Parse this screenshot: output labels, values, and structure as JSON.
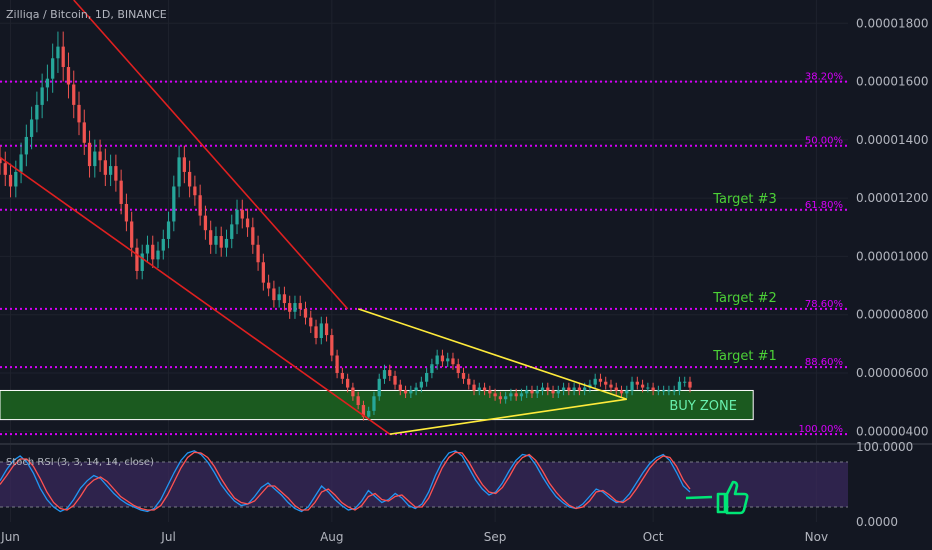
{
  "symbol_title": "Zilliqa / Bitcoin, 1D, BINANCE",
  "colors": {
    "background": "#131722",
    "grid": "#1e222d",
    "axis_text": "#b2b5be",
    "up_candle": "#26a69a",
    "down_candle": "#ef5350",
    "channel_line": "#e02020",
    "triangle_line": "#ffeb3b",
    "fib_line": "#d500f9",
    "target_text": "#4cd137",
    "buy_zone_fill": "#1b5e20",
    "buy_zone_border": "#ffffff",
    "buy_zone_text": "#69f0ae",
    "stoch_k": "#2196f3",
    "stoch_d": "#ff5252",
    "stoch_band": "#3b2a5e"
  },
  "chart_data": [
    {
      "type": "candlestick",
      "title": "Zilliqa / Bitcoin, 1D, BINANCE",
      "x_axis": {
        "tick_labels": [
          "Jun",
          "Jul",
          "Aug",
          "Sep",
          "Oct",
          "Nov"
        ],
        "tick_dates": [
          "2019-06-01",
          "2019-07-01",
          "2019-08-01",
          "2019-09-01",
          "2019-10-01",
          "2019-11-01"
        ],
        "range": [
          "2019-05-30",
          "2019-11-07"
        ]
      },
      "y_axis": {
        "tick_labels": [
          "0.00001800",
          "0.00001600",
          "0.00001400",
          "0.00001200",
          "0.00001000",
          "0.00000800",
          "0.00000600",
          "0.00000400"
        ],
        "ticks": [
          1.8e-05,
          1.6e-05,
          1.4e-05,
          1.2e-05,
          1e-05,
          8e-06,
          6e-06,
          4e-06
        ],
        "range": [
          3.7e-06,
          1.88e-05
        ]
      },
      "grid": true,
      "start_date": "2019-05-30",
      "end_date": "2019-10-05",
      "closes": [
        1.32e-05,
        1.28e-05,
        1.24e-05,
        1.29e-05,
        1.35e-05,
        1.41e-05,
        1.47e-05,
        1.52e-05,
        1.58e-05,
        1.61e-05,
        1.68e-05,
        1.72e-05,
        1.65e-05,
        1.59e-05,
        1.52e-05,
        1.46e-05,
        1.39e-05,
        1.31e-05,
        1.36e-05,
        1.33e-05,
        1.28e-05,
        1.31e-05,
        1.26e-05,
        1.18e-05,
        1.12e-05,
        1.03e-05,
        9.5e-06,
        1.01e-05,
        1.04e-05,
        9.9e-06,
        1.02e-05,
        1.06e-05,
        1.12e-05,
        1.24e-05,
        1.34e-05,
        1.29e-05,
        1.24e-05,
        1.21e-05,
        1.14e-05,
        1.09e-05,
        1.04e-05,
        1.07e-05,
        1.03e-05,
        1.06e-05,
        1.11e-05,
        1.16e-05,
        1.13e-05,
        1.1e-05,
        1.04e-05,
        9.8e-06,
        9.1e-06,
        8.9e-06,
        8.5e-06,
        8.7e-06,
        8.4e-06,
        8.1e-06,
        8.4e-06,
        8.2e-06,
        7.9e-06,
        7.6e-06,
        7.2e-06,
        7.7e-06,
        7.3e-06,
        6.6e-06,
        6e-06,
        5.8e-06,
        5.5e-06,
        5.2e-06,
        4.9e-06,
        4.5e-06,
        4.7e-06,
        5.2e-06,
        5.8e-06,
        6.1e-06,
        5.9e-06,
        5.6e-06,
        5.4e-06,
        5.3e-06,
        5.4e-06,
        5.5e-06,
        5.7e-06,
        6e-06,
        6.3e-06,
        6.6e-06,
        6.4e-06,
        6.5e-06,
        6.3e-06,
        6e-06,
        5.8e-06,
        5.6e-06,
        5.4e-06,
        5.5e-06,
        5.4e-06,
        5.3e-06,
        5.2e-06,
        5.1e-06,
        5.2e-06,
        5.3e-06,
        5.2e-06,
        5.3e-06,
        5.4e-06,
        5.3e-06,
        5.4e-06,
        5.5e-06,
        5.4e-06,
        5.3e-06,
        5.4e-06,
        5.5e-06,
        5.4e-06,
        5.5e-06,
        5.4e-06,
        5.5e-06,
        5.6e-06,
        5.8e-06,
        5.7e-06,
        5.6e-06,
        5.5e-06,
        5.4e-06,
        5.3e-06,
        5.4e-06,
        5.7e-06,
        5.6e-06,
        5.5e-06,
        5.5e-06,
        5.4e-06,
        5.4e-06,
        5.4e-06,
        5.4e-06,
        5.4e-06,
        5.7e-06,
        5.7e-06,
        5.5e-06
      ],
      "fibonacci_levels": [
        {
          "label": "38.20%",
          "value": 1.6e-05
        },
        {
          "label": "50.00%",
          "value": 1.38e-05
        },
        {
          "label": "61.80%",
          "value": 1.16e-05
        },
        {
          "label": "78.60%",
          "value": 8.2e-06
        },
        {
          "label": "88.60%",
          "value": 6.2e-06
        },
        {
          "label": "100.00%",
          "value": 3.9e-06
        }
      ],
      "targets": [
        {
          "label": "Target #3",
          "value": 1.16e-05
        },
        {
          "label": "Target #2",
          "value": 8.2e-06
        },
        {
          "label": "Target #1",
          "value": 6.2e-06
        }
      ],
      "buy_zone": {
        "label": "BUY ZONE",
        "from": 4.4e-06,
        "to": 5.4e-06,
        "start": "2019-05-30",
        "end": "2019-10-20"
      },
      "trend_lines": {
        "channel_upper": [
          [
            "2019-06-13",
            1.88e-05
          ],
          [
            "2019-08-04",
            8.2e-06
          ]
        ],
        "channel_lower": [
          [
            "2019-05-30",
            1.34e-05
          ],
          [
            "2019-08-12",
            3.9e-06
          ]
        ],
        "triangle_upper": [
          [
            "2019-08-06",
            8.2e-06
          ],
          [
            "2019-09-26",
            5.1e-06
          ]
        ],
        "triangle_lower": [
          [
            "2019-08-12",
            3.9e-06
          ],
          [
            "2019-09-26",
            5.1e-06
          ]
        ]
      }
    },
    {
      "type": "line",
      "title": "Stoch RSI (3, 3, 14, 14, close)",
      "y_axis": {
        "tick_labels": [
          "100.0000",
          "0.0000"
        ],
        "range": [
          0,
          100
        ]
      },
      "band": [
        20,
        80
      ],
      "series": [
        {
          "name": "K",
          "values": [
            55,
            70,
            82,
            88,
            80,
            65,
            45,
            30,
            20,
            14,
            18,
            30,
            45,
            55,
            62,
            58,
            48,
            38,
            30,
            24,
            20,
            16,
            14,
            18,
            30,
            48,
            66,
            82,
            92,
            95,
            90,
            80,
            66,
            50,
            38,
            28,
            22,
            24,
            34,
            46,
            52,
            44,
            36,
            26,
            18,
            14,
            20,
            34,
            48,
            40,
            30,
            22,
            16,
            18,
            28,
            42,
            34,
            26,
            30,
            38,
            32,
            22,
            18,
            24,
            40,
            62,
            80,
            92,
            95,
            88,
            72,
            56,
            44,
            36,
            40,
            52,
            68,
            82,
            90,
            88,
            76,
            60,
            46,
            34,
            26,
            20,
            18,
            24,
            34,
            44,
            40,
            32,
            26,
            28,
            38,
            52,
            66,
            78,
            86,
            90,
            82,
            66,
            48,
            40
          ]
        },
        {
          "name": "D",
          "values": [
            50,
            62,
            75,
            84,
            84,
            74,
            58,
            40,
            26,
            18,
            16,
            22,
            34,
            48,
            56,
            60,
            54,
            44,
            34,
            28,
            22,
            18,
            16,
            16,
            22,
            36,
            54,
            72,
            86,
            93,
            92,
            86,
            74,
            58,
            44,
            32,
            26,
            24,
            28,
            38,
            48,
            48,
            40,
            32,
            22,
            16,
            16,
            26,
            40,
            44,
            36,
            26,
            20,
            16,
            22,
            34,
            38,
            30,
            28,
            34,
            36,
            28,
            20,
            20,
            32,
            52,
            72,
            86,
            93,
            92,
            80,
            64,
            50,
            40,
            38,
            46,
            60,
            76,
            86,
            90,
            82,
            68,
            52,
            40,
            30,
            22,
            18,
            20,
            28,
            40,
            42,
            36,
            28,
            26,
            32,
            44,
            58,
            72,
            82,
            88,
            86,
            74,
            56,
            44
          ]
        }
      ]
    }
  ]
}
